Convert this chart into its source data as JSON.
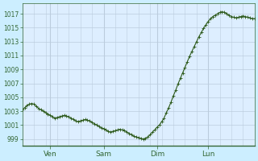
{
  "bg_color": "#cceeff",
  "plot_bg_color": "#ddeeff",
  "grid_color": "#bbccdd",
  "line_color": "#2d5a1b",
  "marker_color": "#2d5a1b",
  "ylim": [
    998,
    1018.5
  ],
  "yticks": [
    999,
    1001,
    1003,
    1005,
    1007,
    1009,
    1011,
    1013,
    1015,
    1017
  ],
  "xtick_labels": [
    "Ven",
    "Sam",
    "Dim",
    "Lun"
  ],
  "xtick_positions": [
    0.12,
    0.35,
    0.58,
    0.8
  ],
  "title": "",
  "x_points": [
    0.0,
    0.01,
    0.02,
    0.03,
    0.04,
    0.05,
    0.06,
    0.07,
    0.08,
    0.09,
    0.1,
    0.11,
    0.12,
    0.13,
    0.14,
    0.15,
    0.16,
    0.17,
    0.18,
    0.19,
    0.2,
    0.21,
    0.22,
    0.23,
    0.24,
    0.25,
    0.26,
    0.27,
    0.28,
    0.29,
    0.3,
    0.31,
    0.32,
    0.33,
    0.34,
    0.35,
    0.36,
    0.37,
    0.38,
    0.39,
    0.4,
    0.41,
    0.42,
    0.43,
    0.44,
    0.45,
    0.46,
    0.47,
    0.48,
    0.49,
    0.5,
    0.51,
    0.52,
    0.53,
    0.54,
    0.55,
    0.56,
    0.57,
    0.58,
    0.59,
    0.6,
    0.61,
    0.62,
    0.63,
    0.64,
    0.65,
    0.66,
    0.67,
    0.68,
    0.69,
    0.7,
    0.71,
    0.72,
    0.73,
    0.74,
    0.75,
    0.76,
    0.77,
    0.78,
    0.79,
    0.8,
    0.81,
    0.82,
    0.83,
    0.84,
    0.85,
    0.86,
    0.87,
    0.88,
    0.89,
    0.9,
    0.91,
    0.92,
    0.93,
    0.94,
    0.95,
    0.96,
    0.97,
    0.98,
    0.99,
    1.0
  ],
  "y_points": [
    1003.2,
    1003.5,
    1003.8,
    1004.0,
    1004.1,
    1004.0,
    1003.7,
    1003.4,
    1003.2,
    1003.0,
    1002.8,
    1002.6,
    1002.4,
    1002.2,
    1002.0,
    1002.1,
    1002.2,
    1002.3,
    1002.4,
    1002.3,
    1002.2,
    1002.0,
    1001.8,
    1001.6,
    1001.5,
    1001.6,
    1001.7,
    1001.8,
    1001.7,
    1001.6,
    1001.4,
    1001.2,
    1001.0,
    1000.8,
    1000.6,
    1000.5,
    1000.3,
    1000.1,
    1000.0,
    1000.1,
    1000.2,
    1000.3,
    1000.4,
    1000.3,
    1000.2,
    1000.0,
    999.8,
    999.6,
    999.4,
    999.3,
    999.2,
    999.1,
    999.0,
    999.1,
    999.3,
    999.6,
    1000.0,
    1000.3,
    1000.7,
    1001.0,
    1001.5,
    1002.0,
    1002.8,
    1003.5,
    1004.3,
    1005.2,
    1006.0,
    1006.9,
    1007.7,
    1008.5,
    1009.3,
    1010.1,
    1010.9,
    1011.6,
    1012.3,
    1013.0,
    1013.7,
    1014.3,
    1014.9,
    1015.4,
    1015.9,
    1016.3,
    1016.6,
    1016.8,
    1017.0,
    1017.2,
    1017.3,
    1017.2,
    1017.0,
    1016.8,
    1016.6,
    1016.5,
    1016.4,
    1016.5,
    1016.6,
    1016.7,
    1016.6,
    1016.5,
    1016.4,
    1016.3,
    1016.3
  ]
}
